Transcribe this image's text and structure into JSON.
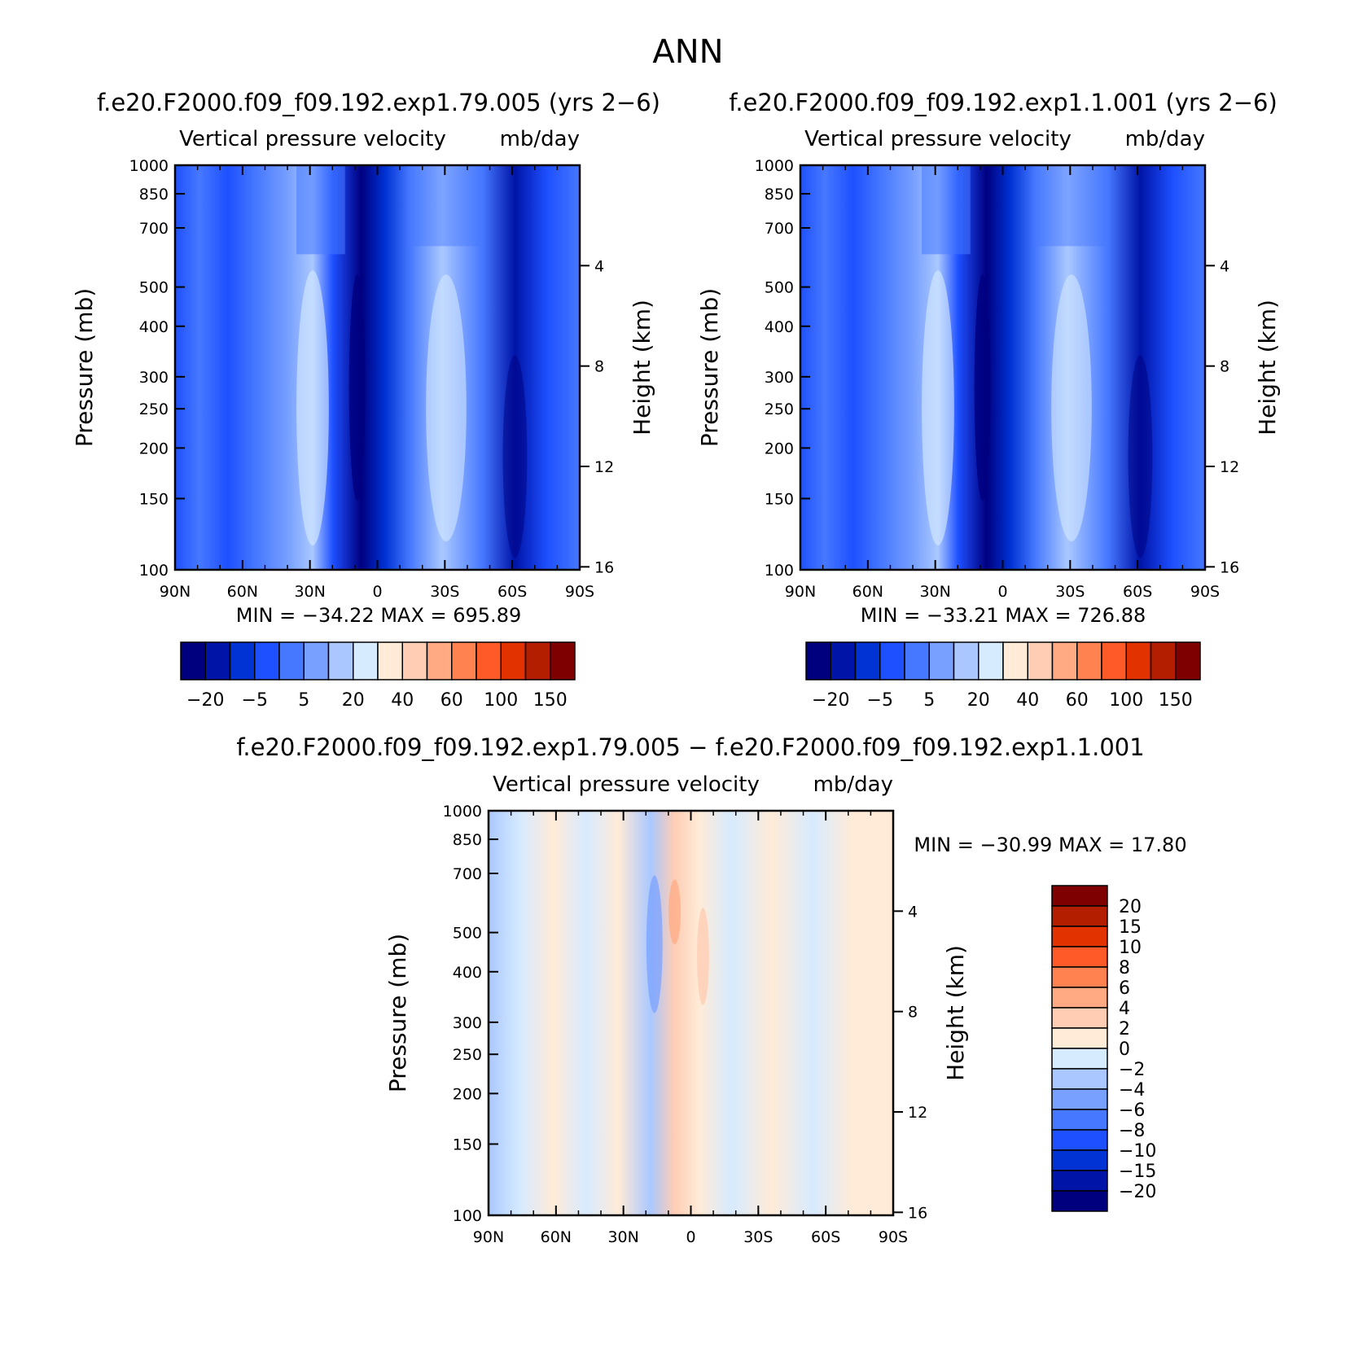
{
  "figure": {
    "title": "ANN"
  },
  "chart_data": [
    {
      "type": "heatmap",
      "id": "panel1",
      "case": "f.e20.F2000.f09_f09.192.exp1.79.005 (yrs 2−6)",
      "title": "Vertical pressure velocity",
      "units": "mb/day",
      "ylabel": "Pressure (mb)",
      "y2label": "Height (km)",
      "x_ticks": [
        "90N",
        "60N",
        "30N",
        "0",
        "30S",
        "60S",
        "90S"
      ],
      "x_tick_values": [
        90,
        60,
        30,
        0,
        -30,
        -60,
        -90
      ],
      "y_ticks": [
        1000,
        850,
        700,
        500,
        400,
        300,
        250,
        200,
        150,
        100
      ],
      "y2_ticks": [
        4,
        8,
        12,
        16
      ],
      "ylim": [
        1000,
        100
      ],
      "xlim": [
        90,
        -90
      ],
      "y_scale": "log",
      "stats": "MIN = −34.22   MAX = 695.89",
      "min": -34.22,
      "max": 695.89,
      "levels_labels": [
        "−20",
        "−5",
        "5",
        "20",
        "40",
        "60",
        "100",
        "150"
      ],
      "colors": [
        "#00007f",
        "#0014a8",
        "#0032d4",
        "#1e50ff",
        "#4678ff",
        "#78a0ff",
        "#aac8ff",
        "#d7ebff",
        "#ffebd7",
        "#ffcdb4",
        "#ffaa82",
        "#ff8250",
        "#ff5a28",
        "#e13200",
        "#b41e00",
        "#7f0000"
      ]
    },
    {
      "type": "heatmap",
      "id": "panel2",
      "case": "f.e20.F2000.f09_f09.192.exp1.1.001 (yrs 2−6)",
      "title": "Vertical pressure velocity",
      "units": "mb/day",
      "ylabel": "Pressure (mb)",
      "y2label": "Height (km)",
      "x_ticks": [
        "90N",
        "60N",
        "30N",
        "0",
        "30S",
        "60S",
        "90S"
      ],
      "x_tick_values": [
        90,
        60,
        30,
        0,
        -30,
        -60,
        -90
      ],
      "y_ticks": [
        1000,
        850,
        700,
        500,
        400,
        300,
        250,
        200,
        150,
        100
      ],
      "y2_ticks": [
        4,
        8,
        12,
        16
      ],
      "ylim": [
        1000,
        100
      ],
      "xlim": [
        90,
        -90
      ],
      "y_scale": "log",
      "stats": "MIN = −33.21   MAX = 726.88",
      "min": -33.21,
      "max": 726.88,
      "levels_labels": [
        "−20",
        "−5",
        "5",
        "20",
        "40",
        "60",
        "100",
        "150"
      ],
      "colors": [
        "#00007f",
        "#0014a8",
        "#0032d4",
        "#1e50ff",
        "#4678ff",
        "#78a0ff",
        "#aac8ff",
        "#d7ebff",
        "#ffebd7",
        "#ffcdb4",
        "#ffaa82",
        "#ff8250",
        "#ff5a28",
        "#e13200",
        "#b41e00",
        "#7f0000"
      ]
    },
    {
      "type": "heatmap",
      "id": "panel3",
      "case": "f.e20.F2000.f09_f09.192.exp1.79.005 − f.e20.F2000.f09_f09.192.exp1.1.001",
      "title": "Vertical pressure velocity",
      "units": "mb/day",
      "ylabel": "Pressure (mb)",
      "y2label": "Height (km)",
      "x_ticks": [
        "90N",
        "60N",
        "30N",
        "0",
        "30S",
        "60S",
        "90S"
      ],
      "x_tick_values": [
        90,
        60,
        30,
        0,
        -30,
        -60,
        -90
      ],
      "y_ticks": [
        1000,
        850,
        700,
        500,
        400,
        300,
        250,
        200,
        150,
        100
      ],
      "y2_ticks": [
        4,
        8,
        12,
        16
      ],
      "ylim": [
        1000,
        100
      ],
      "xlim": [
        90,
        -90
      ],
      "y_scale": "log",
      "stats": "MIN = −30.99   MAX =   17.80",
      "min": -30.99,
      "max": 17.8,
      "levels_labels": [
        "20",
        "15",
        "10",
        "8",
        "6",
        "4",
        "2",
        "0",
        "−2",
        "−4",
        "−6",
        "−8",
        "−10",
        "−15",
        "−20"
      ],
      "colors": [
        "#7f0000",
        "#b41e00",
        "#e13200",
        "#ff5a28",
        "#ff8250",
        "#ffaa82",
        "#ffcdb4",
        "#ffebd7",
        "#d7ebff",
        "#aac8ff",
        "#78a0ff",
        "#4678ff",
        "#1e50ff",
        "#0032d4",
        "#0014a8",
        "#00007f"
      ]
    }
  ]
}
